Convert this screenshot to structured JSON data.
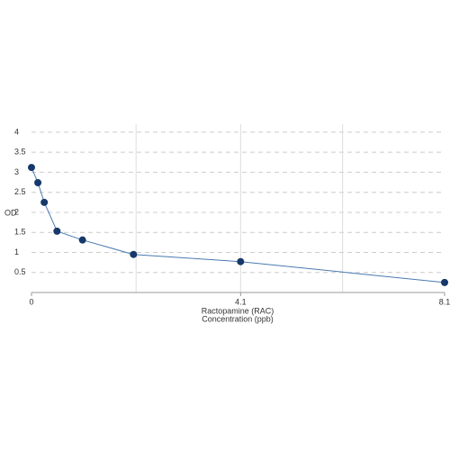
{
  "chart_data": {
    "type": "line",
    "ylabel": "OD",
    "xlabel": [
      "Ractopamine (RAC)",
      "Concentration (ppb)"
    ],
    "x": [
      0,
      0.125,
      0.25,
      0.5,
      1,
      2,
      4.1,
      8.1
    ],
    "series": [
      {
        "name": "Ractopamine (RAC)",
        "line_color": "#4a7ab0",
        "marker_color": "#16386a",
        "values": [
          3.12,
          2.74,
          2.25,
          1.53,
          1.31,
          0.95,
          0.77,
          0.25
        ]
      }
    ],
    "xlim": [
      0,
      8.1
    ],
    "xticks": [
      0,
      4.1,
      8.1
    ],
    "xgrid": [
      2.05,
      4.1,
      6.1
    ],
    "ylim": [
      0,
      4.2
    ],
    "yticks": [
      0.5,
      1,
      1.5,
      2,
      2.5,
      3,
      3.5,
      4
    ],
    "grid": true
  }
}
